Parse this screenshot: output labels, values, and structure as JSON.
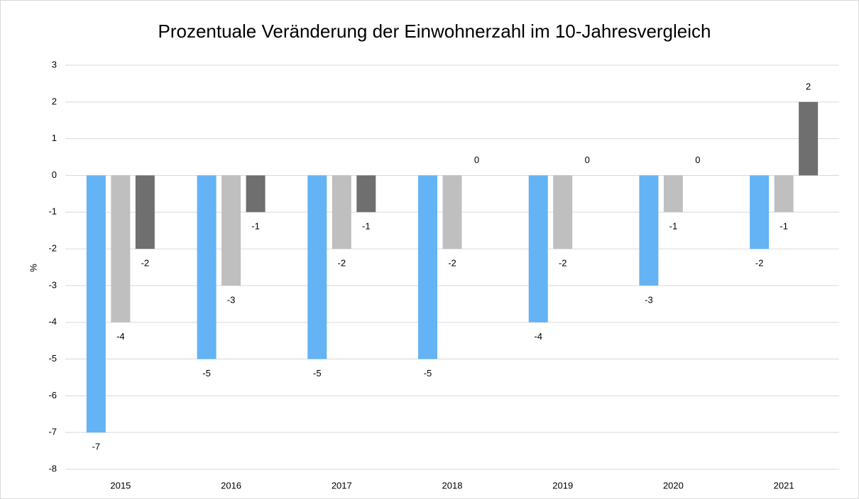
{
  "chart_data": {
    "type": "bar",
    "title": "Prozentuale Veränderung der Einwohnerzahl im 10-Jahresvergleich",
    "ylabel": "%",
    "categories": [
      "2015",
      "2016",
      "2017",
      "2018",
      "2019",
      "2020",
      "2021"
    ],
    "series": [
      {
        "color": "#63b3f5",
        "values": [
          -7,
          -5,
          -5,
          -5,
          -4,
          -3,
          -2
        ]
      },
      {
        "color": "#bfbfbf",
        "values": [
          -4,
          -3,
          -2,
          -2,
          -2,
          -1,
          -1
        ]
      },
      {
        "color": "#6f6f6f",
        "values": [
          -2,
          -1,
          -1,
          0,
          0,
          0,
          2
        ]
      }
    ],
    "ylim": [
      -8,
      3
    ],
    "yticks": [
      -8,
      -7,
      -6,
      -5,
      -4,
      -3,
      -2,
      -1,
      0,
      1,
      2,
      3
    ],
    "grid": true,
    "data_labels": true
  }
}
